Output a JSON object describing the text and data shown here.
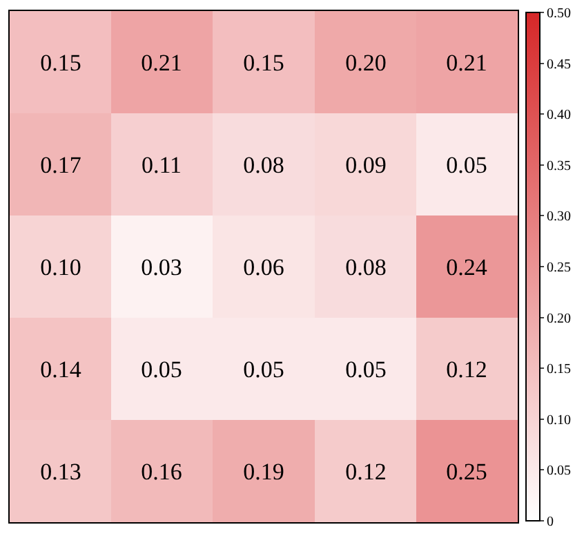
{
  "chart_data": {
    "type": "heatmap",
    "categories": [
      null,
      null,
      null,
      null,
      null
    ],
    "y_categories": [
      null,
      null,
      null,
      null,
      null
    ],
    "cells": [
      [
        0.15,
        0.21,
        0.15,
        0.2,
        0.21
      ],
      [
        0.17,
        0.11,
        0.08,
        0.09,
        0.05
      ],
      [
        0.1,
        0.03,
        0.06,
        0.08,
        0.24
      ],
      [
        0.14,
        0.05,
        0.05,
        0.05,
        0.12
      ],
      [
        0.13,
        0.16,
        0.19,
        0.12,
        0.25
      ]
    ],
    "color": "#d62728",
    "clim": [
      0,
      0.5
    ],
    "cticks": [
      0,
      0.05,
      {
        "value": 0.1,
        "label": "0.10"
      },
      0.15,
      {
        "value": 0.2,
        "label": "0.20"
      },
      0.25,
      {
        "value": 0.3,
        "label": "0.30"
      },
      0.35,
      {
        "value": 0.4,
        "label": "0.40"
      },
      0.45,
      {
        "value": 0.5,
        "label": "0.50"
      }
    ],
    "cell_labels": [
      [
        "0.15",
        "0.21",
        "0.15",
        "0.20",
        "0.21"
      ],
      [
        "0.17",
        "0.11",
        "0.08",
        "0.09",
        "0.05"
      ],
      [
        "0.10",
        "0.03",
        "0.06",
        "0.08",
        "0.24"
      ],
      [
        "0.14",
        "0.05",
        "0.05",
        "0.05",
        "0.12"
      ],
      [
        "0.13",
        "0.16",
        "0.19",
        "0.12",
        "0.25"
      ]
    ],
    "data_labels": true
  }
}
